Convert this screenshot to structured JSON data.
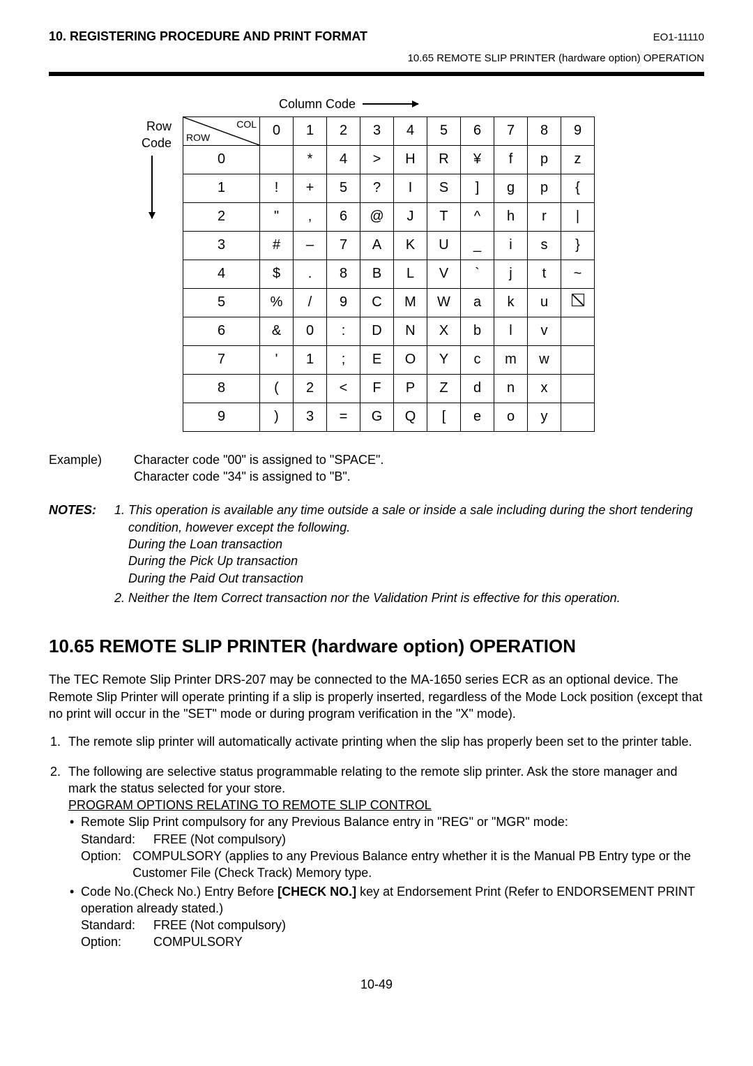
{
  "header": {
    "left": "10. REGISTERING PROCEDURE AND PRINT FORMAT",
    "right": "EO1-11110",
    "sub": "10.65  REMOTE SLIP PRINTER (hardware option) OPERATION"
  },
  "table": {
    "column_code_label": "Column Code",
    "row_code_label_1": "Row",
    "row_code_label_2": "Code",
    "corner_col": "COL",
    "corner_row": "ROW",
    "col_headers": [
      "0",
      "1",
      "2",
      "3",
      "4",
      "5",
      "6",
      "7",
      "8",
      "9"
    ],
    "row_headers": [
      "0",
      "1",
      "2",
      "3",
      "4",
      "5",
      "6",
      "7",
      "8",
      "9"
    ],
    "cells": [
      [
        "",
        "*",
        "4",
        ">",
        "H",
        "R",
        "¥",
        "f",
        "p",
        "z"
      ],
      [
        "!",
        "+",
        "5",
        "?",
        "I",
        "S",
        "]",
        "g",
        "p",
        "{"
      ],
      [
        "\"",
        ",",
        "6",
        "@",
        "J",
        "T",
        "^",
        "h",
        "r",
        "|"
      ],
      [
        "#",
        "–",
        "7",
        "A",
        "K",
        "U",
        "_",
        "i",
        "s",
        "}"
      ],
      [
        "$",
        ".",
        "8",
        "B",
        "L",
        "V",
        "`",
        "j",
        "t",
        "~"
      ],
      [
        "%",
        "/",
        "9",
        "C",
        "M",
        "W",
        "a",
        "k",
        "u",
        "BOX"
      ],
      [
        "&",
        "0",
        ":",
        "D",
        "N",
        "X",
        "b",
        "l",
        "v",
        ""
      ],
      [
        "'",
        "1",
        ";",
        "E",
        "O",
        "Y",
        "c",
        "m",
        "w",
        ""
      ],
      [
        "(",
        "2",
        "<",
        "F",
        "P",
        "Z",
        "d",
        "n",
        "x",
        ""
      ],
      [
        ")",
        "3",
        "=",
        "G",
        "Q",
        "[",
        "e",
        "o",
        "y",
        ""
      ]
    ]
  },
  "example": {
    "label": "Example)",
    "line1": "Character code \"00\" is assigned to \"SPACE\".",
    "line2": "Character code \"34\" is assigned to \"B\"."
  },
  "notes": {
    "label": "NOTES:",
    "item1_a": "This operation is available any time outside a sale or inside a sale including during the short tendering condition, however except the following.",
    "item1_b": "During the Loan transaction",
    "item1_c": "During the Pick Up transaction",
    "item1_d": "During the Paid Out transaction",
    "item2": "Neither the Item Correct transaction nor the Validation Print is effective for this operation."
  },
  "section": {
    "title": "10.65  REMOTE SLIP PRINTER (hardware option) OPERATION",
    "intro": "The TEC Remote Slip Printer DRS-207 may be connected to the MA-1650 series ECR as an optional device.  The Remote Slip Printer will operate printing if a slip is properly inserted, regardless of the Mode Lock position (except that no print will occur in the \"SET\" mode or during program verification in the \"X\" mode).",
    "li1": "The remote slip printer will automatically activate printing when the slip has properly been set to the printer table.",
    "li2a": "The following are selective status programmable relating to the remote slip printer.  Ask the store manager and mark the status selected for your store.",
    "li2b": "PROGRAM OPTIONS RELATING TO REMOTE SLIP CONTROL",
    "b1_line1": "Remote Slip Print compulsory for any Previous Balance entry in \"REG\" or \"MGR\" mode:",
    "b1_std_k": "Standard:",
    "b1_std_v": "FREE (Not compulsory)",
    "b1_opt_k": "Option:",
    "b1_opt_v": "COMPULSORY (applies to any Previous Balance entry whether it is the Manual PB Entry type or the Customer File (Check Track) Memory type.",
    "b2_line1a": "Code No.(Check No.) Entry Before ",
    "b2_line1b": "[CHECK NO.]",
    "b2_line1c": " key at Endorsement Print (Refer to ENDORSEMENT PRINT operation already stated.)",
    "b2_std_k": "Standard:",
    "b2_std_v": "FREE (Not compulsory)",
    "b2_opt_k": "Option:",
    "b2_opt_v": "COMPULSORY"
  },
  "page_num": "10-49"
}
